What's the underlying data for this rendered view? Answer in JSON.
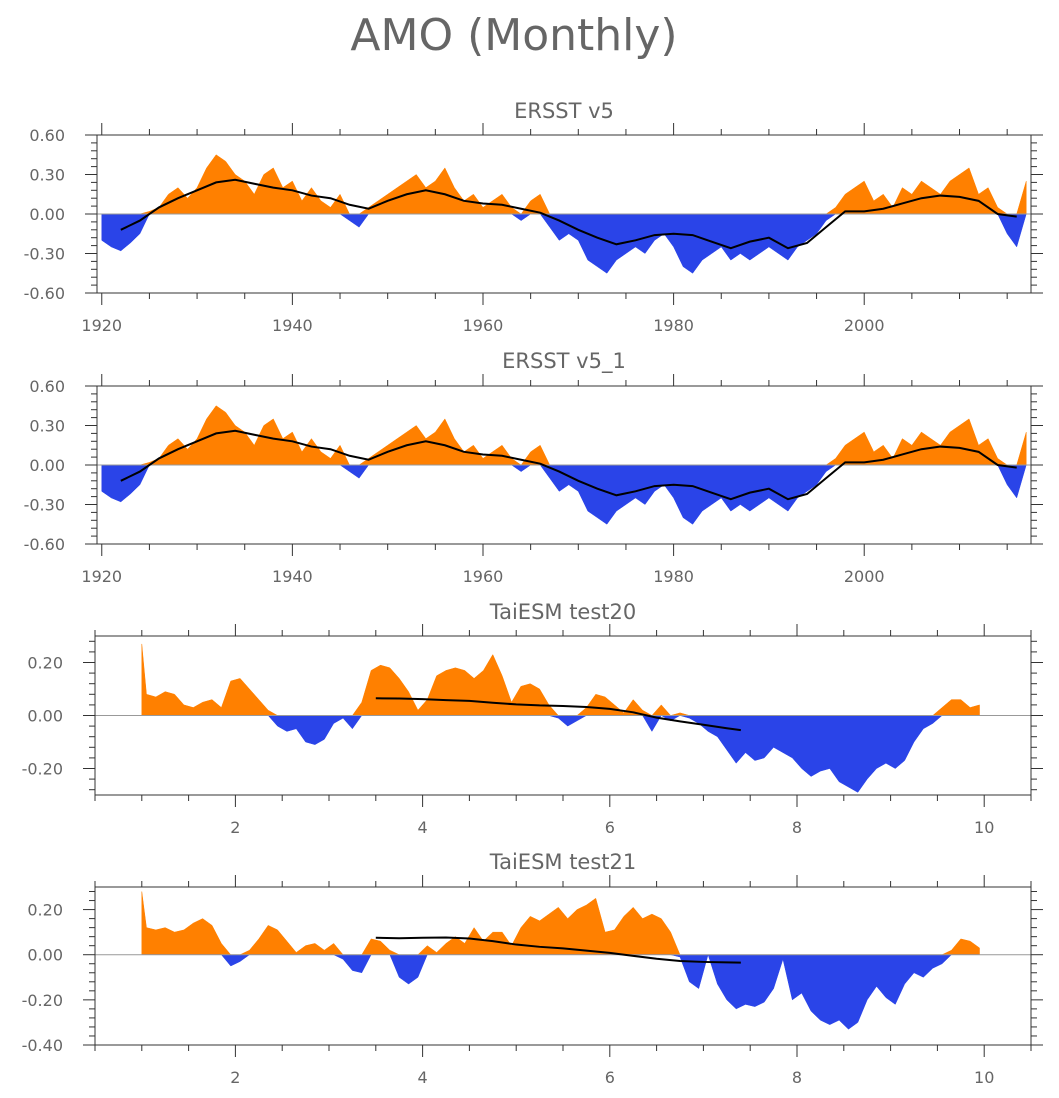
{
  "figure_title": "AMO (Monthly)",
  "colors": {
    "positive": "#ff8000",
    "negative": "#2a44e8",
    "smooth": "#000000"
  },
  "chart_data": [
    {
      "type": "area",
      "title": "ERSST v5",
      "xlabel": "",
      "ylabel": "",
      "xlim": [
        1919.5,
        2017.5
      ],
      "ylim": [
        -0.6,
        0.6
      ],
      "xticks": [
        1920,
        1940,
        1960,
        1980,
        2000
      ],
      "yticks": [
        0.6,
        0.3,
        0,
        -0.3,
        -0.6
      ],
      "ytick_labels": [
        "0.60",
        "0.30",
        "0.00",
        "-0.30",
        "-0.60"
      ],
      "x": [
        1920,
        1921,
        1922,
        1923,
        1924,
        1925,
        1926,
        1927,
        1928,
        1929,
        1930,
        1931,
        1932,
        1933,
        1934,
        1935,
        1936,
        1937,
        1938,
        1939,
        1940,
        1941,
        1942,
        1943,
        1944,
        1945,
        1946,
        1947,
        1948,
        1949,
        1950,
        1951,
        1952,
        1953,
        1954,
        1955,
        1956,
        1957,
        1958,
        1959,
        1960,
        1961,
        1962,
        1963,
        1964,
        1965,
        1966,
        1967,
        1968,
        1969,
        1970,
        1971,
        1972,
        1973,
        1974,
        1975,
        1976,
        1977,
        1978,
        1979,
        1980,
        1981,
        1982,
        1983,
        1984,
        1985,
        1986,
        1987,
        1988,
        1989,
        1990,
        1991,
        1992,
        1993,
        1994,
        1995,
        1996,
        1997,
        1998,
        1999,
        2000,
        2001,
        2002,
        2003,
        2004,
        2005,
        2006,
        2007,
        2008,
        2009,
        2010,
        2011,
        2012,
        2013,
        2014,
        2015,
        2016,
        2017
      ],
      "values": [
        -0.2,
        -0.25,
        -0.28,
        -0.22,
        -0.15,
        0.02,
        0.05,
        0.15,
        0.2,
        0.12,
        0.2,
        0.35,
        0.45,
        0.4,
        0.3,
        0.25,
        0.15,
        0.3,
        0.35,
        0.2,
        0.25,
        0.1,
        0.2,
        0.1,
        0.05,
        0.15,
        -0.05,
        -0.1,
        0.05,
        0.1,
        0.15,
        0.2,
        0.25,
        0.3,
        0.2,
        0.25,
        0.35,
        0.2,
        0.1,
        0.15,
        0.05,
        0.1,
        0.15,
        0.05,
        -0.05,
        0.1,
        0.15,
        -0.1,
        -0.2,
        -0.15,
        -0.2,
        -0.35,
        -0.4,
        -0.45,
        -0.35,
        -0.3,
        -0.25,
        -0.3,
        -0.2,
        -0.15,
        -0.25,
        -0.4,
        -0.45,
        -0.35,
        -0.3,
        -0.25,
        -0.35,
        -0.3,
        -0.35,
        -0.3,
        -0.25,
        -0.3,
        -0.35,
        -0.25,
        -0.2,
        -0.15,
        -0.05,
        0.05,
        0.15,
        0.2,
        0.25,
        0.1,
        0.15,
        0.05,
        0.2,
        0.15,
        0.25,
        0.2,
        0.15,
        0.25,
        0.3,
        0.35,
        0.15,
        0.2,
        0.05,
        -0.15,
        -0.25,
        0.25
      ],
      "smooth_x": [
        1922,
        1924,
        1926,
        1928,
        1930,
        1932,
        1934,
        1936,
        1938,
        1940,
        1942,
        1944,
        1946,
        1948,
        1950,
        1952,
        1954,
        1956,
        1958,
        1960,
        1962,
        1964,
        1966,
        1968,
        1970,
        1972,
        1974,
        1976,
        1978,
        1980,
        1982,
        1984,
        1986,
        1988,
        1990,
        1992,
        1994,
        1996,
        1998,
        2000,
        2002,
        2004,
        2006,
        2008,
        2010,
        2012,
        2014,
        2016
      ],
      "smooth": [
        -0.12,
        -0.05,
        0.05,
        0.12,
        0.18,
        0.24,
        0.26,
        0.23,
        0.2,
        0.18,
        0.14,
        0.12,
        0.07,
        0.04,
        0.1,
        0.15,
        0.18,
        0.15,
        0.1,
        0.08,
        0.07,
        0.04,
        0.01,
        -0.05,
        -0.12,
        -0.18,
        -0.23,
        -0.2,
        -0.16,
        -0.15,
        -0.16,
        -0.21,
        -0.26,
        -0.21,
        -0.18,
        -0.26,
        -0.22,
        -0.1,
        0.02,
        0.02,
        0.04,
        0.08,
        0.12,
        0.14,
        0.13,
        0.1,
        0.0,
        -0.02
      ]
    },
    {
      "type": "area",
      "title": "ERSST v5_1",
      "xlabel": "",
      "ylabel": "",
      "xlim": [
        1919.5,
        2017.5
      ],
      "ylim": [
        -0.6,
        0.6
      ],
      "xticks": [
        1920,
        1940,
        1960,
        1980,
        2000
      ],
      "yticks": [
        0.6,
        0.3,
        0,
        -0.3,
        -0.6
      ],
      "ytick_labels": [
        "0.60",
        "0.30",
        "0.00",
        "-0.30",
        "-0.60"
      ],
      "x": [
        1920,
        1921,
        1922,
        1923,
        1924,
        1925,
        1926,
        1927,
        1928,
        1929,
        1930,
        1931,
        1932,
        1933,
        1934,
        1935,
        1936,
        1937,
        1938,
        1939,
        1940,
        1941,
        1942,
        1943,
        1944,
        1945,
        1946,
        1947,
        1948,
        1949,
        1950,
        1951,
        1952,
        1953,
        1954,
        1955,
        1956,
        1957,
        1958,
        1959,
        1960,
        1961,
        1962,
        1963,
        1964,
        1965,
        1966,
        1967,
        1968,
        1969,
        1970,
        1971,
        1972,
        1973,
        1974,
        1975,
        1976,
        1977,
        1978,
        1979,
        1980,
        1981,
        1982,
        1983,
        1984,
        1985,
        1986,
        1987,
        1988,
        1989,
        1990,
        1991,
        1992,
        1993,
        1994,
        1995,
        1996,
        1997,
        1998,
        1999,
        2000,
        2001,
        2002,
        2003,
        2004,
        2005,
        2006,
        2007,
        2008,
        2009,
        2010,
        2011,
        2012,
        2013,
        2014,
        2015,
        2016,
        2017
      ],
      "values": [
        -0.2,
        -0.25,
        -0.28,
        -0.22,
        -0.15,
        0.02,
        0.05,
        0.15,
        0.2,
        0.12,
        0.2,
        0.35,
        0.45,
        0.4,
        0.3,
        0.25,
        0.15,
        0.3,
        0.35,
        0.2,
        0.25,
        0.1,
        0.2,
        0.1,
        0.05,
        0.15,
        -0.05,
        -0.1,
        0.05,
        0.1,
        0.15,
        0.2,
        0.25,
        0.3,
        0.2,
        0.25,
        0.35,
        0.2,
        0.1,
        0.15,
        0.05,
        0.1,
        0.15,
        0.05,
        -0.05,
        0.1,
        0.15,
        -0.1,
        -0.2,
        -0.15,
        -0.2,
        -0.35,
        -0.4,
        -0.45,
        -0.35,
        -0.3,
        -0.25,
        -0.3,
        -0.2,
        -0.15,
        -0.25,
        -0.4,
        -0.45,
        -0.35,
        -0.3,
        -0.25,
        -0.35,
        -0.3,
        -0.35,
        -0.3,
        -0.25,
        -0.3,
        -0.35,
        -0.25,
        -0.2,
        -0.15,
        -0.05,
        0.05,
        0.15,
        0.2,
        0.25,
        0.1,
        0.15,
        0.05,
        0.2,
        0.15,
        0.25,
        0.2,
        0.15,
        0.25,
        0.3,
        0.35,
        0.15,
        0.2,
        0.05,
        -0.15,
        -0.25,
        0.25
      ],
      "smooth_x": [
        1922,
        1924,
        1926,
        1928,
        1930,
        1932,
        1934,
        1936,
        1938,
        1940,
        1942,
        1944,
        1946,
        1948,
        1950,
        1952,
        1954,
        1956,
        1958,
        1960,
        1962,
        1964,
        1966,
        1968,
        1970,
        1972,
        1974,
        1976,
        1978,
        1980,
        1982,
        1984,
        1986,
        1988,
        1990,
        1992,
        1994,
        1996,
        1998,
        2000,
        2002,
        2004,
        2006,
        2008,
        2010,
        2012,
        2014,
        2016
      ],
      "smooth": [
        -0.12,
        -0.05,
        0.05,
        0.12,
        0.18,
        0.24,
        0.26,
        0.23,
        0.2,
        0.18,
        0.14,
        0.12,
        0.07,
        0.04,
        0.1,
        0.15,
        0.18,
        0.15,
        0.1,
        0.08,
        0.07,
        0.04,
        0.01,
        -0.05,
        -0.12,
        -0.18,
        -0.23,
        -0.2,
        -0.16,
        -0.15,
        -0.16,
        -0.21,
        -0.26,
        -0.21,
        -0.18,
        -0.26,
        -0.22,
        -0.1,
        0.02,
        0.02,
        0.04,
        0.08,
        0.12,
        0.14,
        0.13,
        0.1,
        0.0,
        -0.02
      ]
    },
    {
      "type": "area",
      "title": "TaiESM test20",
      "xlabel": "",
      "ylabel": "",
      "xlim": [
        0.5,
        10.5
      ],
      "ylim": [
        -0.3,
        0.3
      ],
      "xticks": [
        2,
        4,
        6,
        8,
        10
      ],
      "yticks": [
        0.2,
        0,
        -0.2
      ],
      "ytick_labels": [
        "0.20",
        "0.00",
        "-0.20"
      ],
      "x": [
        1,
        1.05,
        1.15,
        1.25,
        1.35,
        1.45,
        1.55,
        1.65,
        1.75,
        1.85,
        1.95,
        2.05,
        2.15,
        2.25,
        2.35,
        2.45,
        2.55,
        2.65,
        2.75,
        2.85,
        2.95,
        3.05,
        3.15,
        3.25,
        3.35,
        3.45,
        3.55,
        3.65,
        3.75,
        3.85,
        3.95,
        4.05,
        4.15,
        4.25,
        4.35,
        4.45,
        4.55,
        4.65,
        4.75,
        4.85,
        4.95,
        5.05,
        5.15,
        5.25,
        5.35,
        5.45,
        5.55,
        5.65,
        5.75,
        5.85,
        5.95,
        6.05,
        6.15,
        6.25,
        6.35,
        6.45,
        6.55,
        6.65,
        6.75,
        6.85,
        6.95,
        7.05,
        7.15,
        7.25,
        7.35,
        7.45,
        7.55,
        7.65,
        7.75,
        7.85,
        7.95,
        8.05,
        8.15,
        8.25,
        8.35,
        8.45,
        8.55,
        8.65,
        8.75,
        8.85,
        8.95,
        9.05,
        9.15,
        9.25,
        9.35,
        9.45,
        9.55,
        9.65,
        9.75,
        9.85,
        9.95
      ],
      "values": [
        0.27,
        0.08,
        0.07,
        0.09,
        0.08,
        0.04,
        0.03,
        0.05,
        0.06,
        0.03,
        0.13,
        0.14,
        0.1,
        0.06,
        0.02,
        -0.04,
        -0.06,
        -0.05,
        -0.1,
        -0.11,
        -0.09,
        -0.03,
        -0.01,
        -0.05,
        0.05,
        0.17,
        0.19,
        0.18,
        0.14,
        0.09,
        0.02,
        0.06,
        0.15,
        0.17,
        0.18,
        0.17,
        0.14,
        0.17,
        0.23,
        0.15,
        0.05,
        0.11,
        0.12,
        0.1,
        0.04,
        -0.01,
        -0.04,
        -0.02,
        0.03,
        0.08,
        0.07,
        0.04,
        0.01,
        0.06,
        0.02,
        -0.06,
        0.04,
        -0.02,
        0.01,
        -0.01,
        -0.03,
        -0.06,
        -0.08,
        -0.13,
        -0.18,
        -0.14,
        -0.17,
        -0.16,
        -0.12,
        -0.14,
        -0.16,
        -0.2,
        -0.23,
        -0.21,
        -0.2,
        -0.25,
        -0.27,
        -0.29,
        -0.24,
        -0.2,
        -0.18,
        -0.2,
        -0.17,
        -0.1,
        -0.05,
        -0.03,
        0.03,
        0.06,
        0.06,
        0.03,
        0.04
      ],
      "smooth_x": [
        3.5,
        3.75,
        4.0,
        4.25,
        4.5,
        4.75,
        5.0,
        5.25,
        5.5,
        5.75,
        6.0,
        6.25,
        6.5,
        6.75,
        7.0,
        7.25,
        7.4
      ],
      "smooth": [
        0.065,
        0.064,
        0.062,
        0.058,
        0.055,
        0.048,
        0.042,
        0.038,
        0.036,
        0.032,
        0.025,
        0.012,
        -0.008,
        -0.022,
        -0.035,
        -0.048,
        -0.055
      ]
    },
    {
      "type": "area",
      "title": "TaiESM test21",
      "xlabel": "",
      "ylabel": "",
      "xlim": [
        0.5,
        10.5
      ],
      "ylim": [
        -0.4,
        0.3
      ],
      "xticks": [
        2,
        4,
        6,
        8,
        10
      ],
      "yticks": [
        0.2,
        0,
        -0.2,
        -0.4
      ],
      "ytick_labels": [
        "0.20",
        "0.00",
        "-0.20",
        "-0.40"
      ],
      "x": [
        1,
        1.05,
        1.15,
        1.25,
        1.35,
        1.45,
        1.55,
        1.65,
        1.75,
        1.85,
        1.95,
        2.05,
        2.15,
        2.25,
        2.35,
        2.45,
        2.55,
        2.65,
        2.75,
        2.85,
        2.95,
        3.05,
        3.15,
        3.25,
        3.35,
        3.45,
        3.55,
        3.65,
        3.75,
        3.85,
        3.95,
        4.05,
        4.15,
        4.25,
        4.35,
        4.45,
        4.55,
        4.65,
        4.75,
        4.85,
        4.95,
        5.05,
        5.15,
        5.25,
        5.35,
        5.45,
        5.55,
        5.65,
        5.75,
        5.85,
        5.95,
        6.05,
        6.15,
        6.25,
        6.35,
        6.45,
        6.55,
        6.65,
        6.75,
        6.85,
        6.95,
        7.05,
        7.15,
        7.25,
        7.35,
        7.45,
        7.55,
        7.65,
        7.75,
        7.85,
        7.95,
        8.05,
        8.15,
        8.25,
        8.35,
        8.45,
        8.55,
        8.65,
        8.75,
        8.85,
        8.95,
        9.05,
        9.15,
        9.25,
        9.35,
        9.45,
        9.55,
        9.65,
        9.75,
        9.85,
        9.95
      ],
      "values": [
        0.28,
        0.12,
        0.11,
        0.12,
        0.1,
        0.11,
        0.14,
        0.16,
        0.13,
        0.05,
        -0.05,
        -0.03,
        0.02,
        0.07,
        0.13,
        0.11,
        0.06,
        0.01,
        0.04,
        0.05,
        0.02,
        0.05,
        -0.02,
        -0.07,
        -0.08,
        0.07,
        0.06,
        0.02,
        -0.1,
        -0.13,
        -0.1,
        0.04,
        0.01,
        0.05,
        0.08,
        0.05,
        0.12,
        0.06,
        0.1,
        0.1,
        0.04,
        0.12,
        0.17,
        0.15,
        0.18,
        0.21,
        0.16,
        0.2,
        0.22,
        0.25,
        0.1,
        0.11,
        0.17,
        0.21,
        0.16,
        0.18,
        0.16,
        0.1,
        -0.01,
        -0.12,
        -0.15,
        0.0,
        -0.13,
        -0.2,
        -0.24,
        -0.22,
        -0.23,
        -0.21,
        -0.15,
        -0.02,
        -0.2,
        -0.17,
        -0.25,
        -0.29,
        -0.31,
        -0.29,
        -0.33,
        -0.3,
        -0.2,
        -0.14,
        -0.19,
        -0.22,
        -0.13,
        -0.08,
        -0.1,
        -0.06,
        -0.04,
        0.02,
        0.07,
        0.06,
        0.03
      ],
      "smooth_x": [
        3.5,
        3.75,
        4.0,
        4.25,
        4.5,
        4.75,
        5.0,
        5.25,
        5.5,
        5.75,
        6.0,
        6.25,
        6.5,
        6.75,
        7.0,
        7.25,
        7.4
      ],
      "smooth": [
        0.075,
        0.073,
        0.075,
        0.076,
        0.072,
        0.06,
        0.045,
        0.035,
        0.028,
        0.018,
        0.008,
        -0.005,
        -0.018,
        -0.028,
        -0.032,
        -0.034,
        -0.035
      ]
    }
  ]
}
